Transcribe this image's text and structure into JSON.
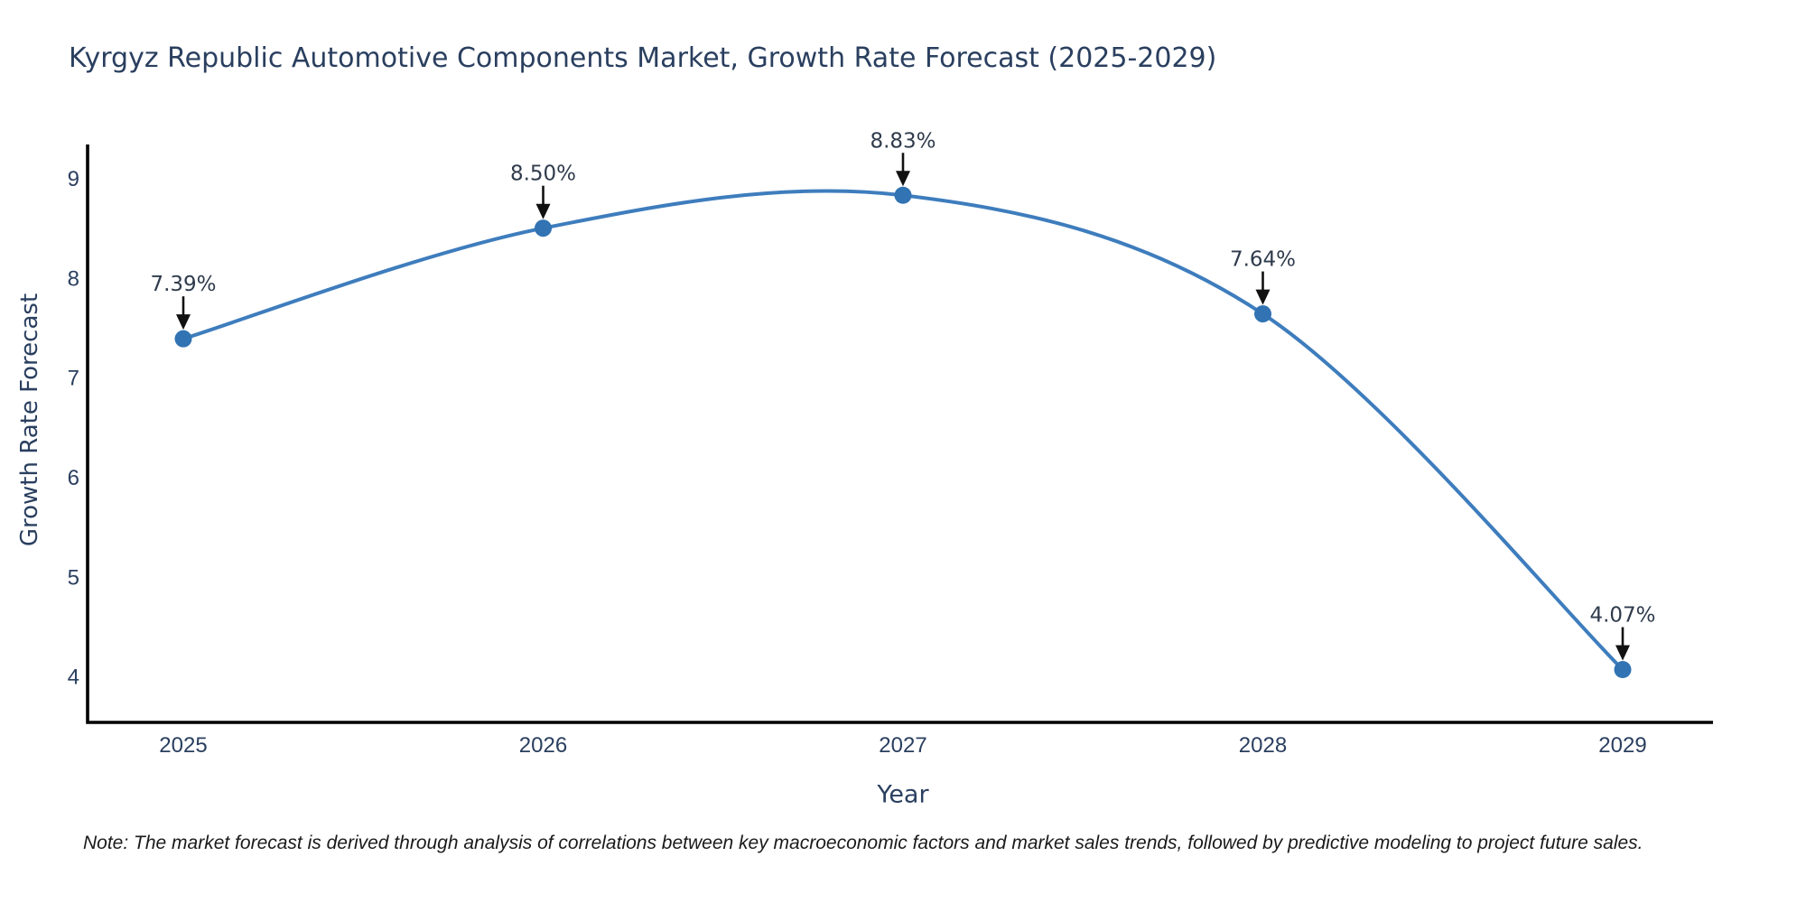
{
  "chart_data": {
    "type": "line",
    "title": "Kyrgyz Republic Automotive Components Market, Growth Rate Forecast (2025-2029)",
    "xlabel": "Year",
    "ylabel": "Growth Rate Forecast",
    "categories": [
      "2025",
      "2026",
      "2027",
      "2028",
      "2029"
    ],
    "series": [
      {
        "name": "Growth Rate Forecast",
        "values": [
          7.39,
          8.5,
          8.83,
          7.64,
          4.07
        ],
        "point_labels": [
          "7.39%",
          "8.50%",
          "8.83%",
          "7.64%",
          "4.07%"
        ]
      }
    ],
    "yticks": [
      4,
      5,
      6,
      7,
      8,
      9
    ],
    "ylim": [
      3.54,
      9.34
    ],
    "line_shape": "spline",
    "grid": false,
    "legend_position": "none",
    "colors": {
      "line": "#3e7dbd",
      "marker": "#3173b3",
      "axis": "#000000",
      "title_text": "#2a3f5f",
      "tick_text": "#2a3f5f",
      "annotation_text": "#2f3b4c",
      "arrow": "#111111",
      "background": "#ffffff"
    },
    "note": "Note: The market forecast is derived through analysis of correlations between key macroeconomic factors and market sales trends, followed by predictive modeling to project future sales."
  }
}
